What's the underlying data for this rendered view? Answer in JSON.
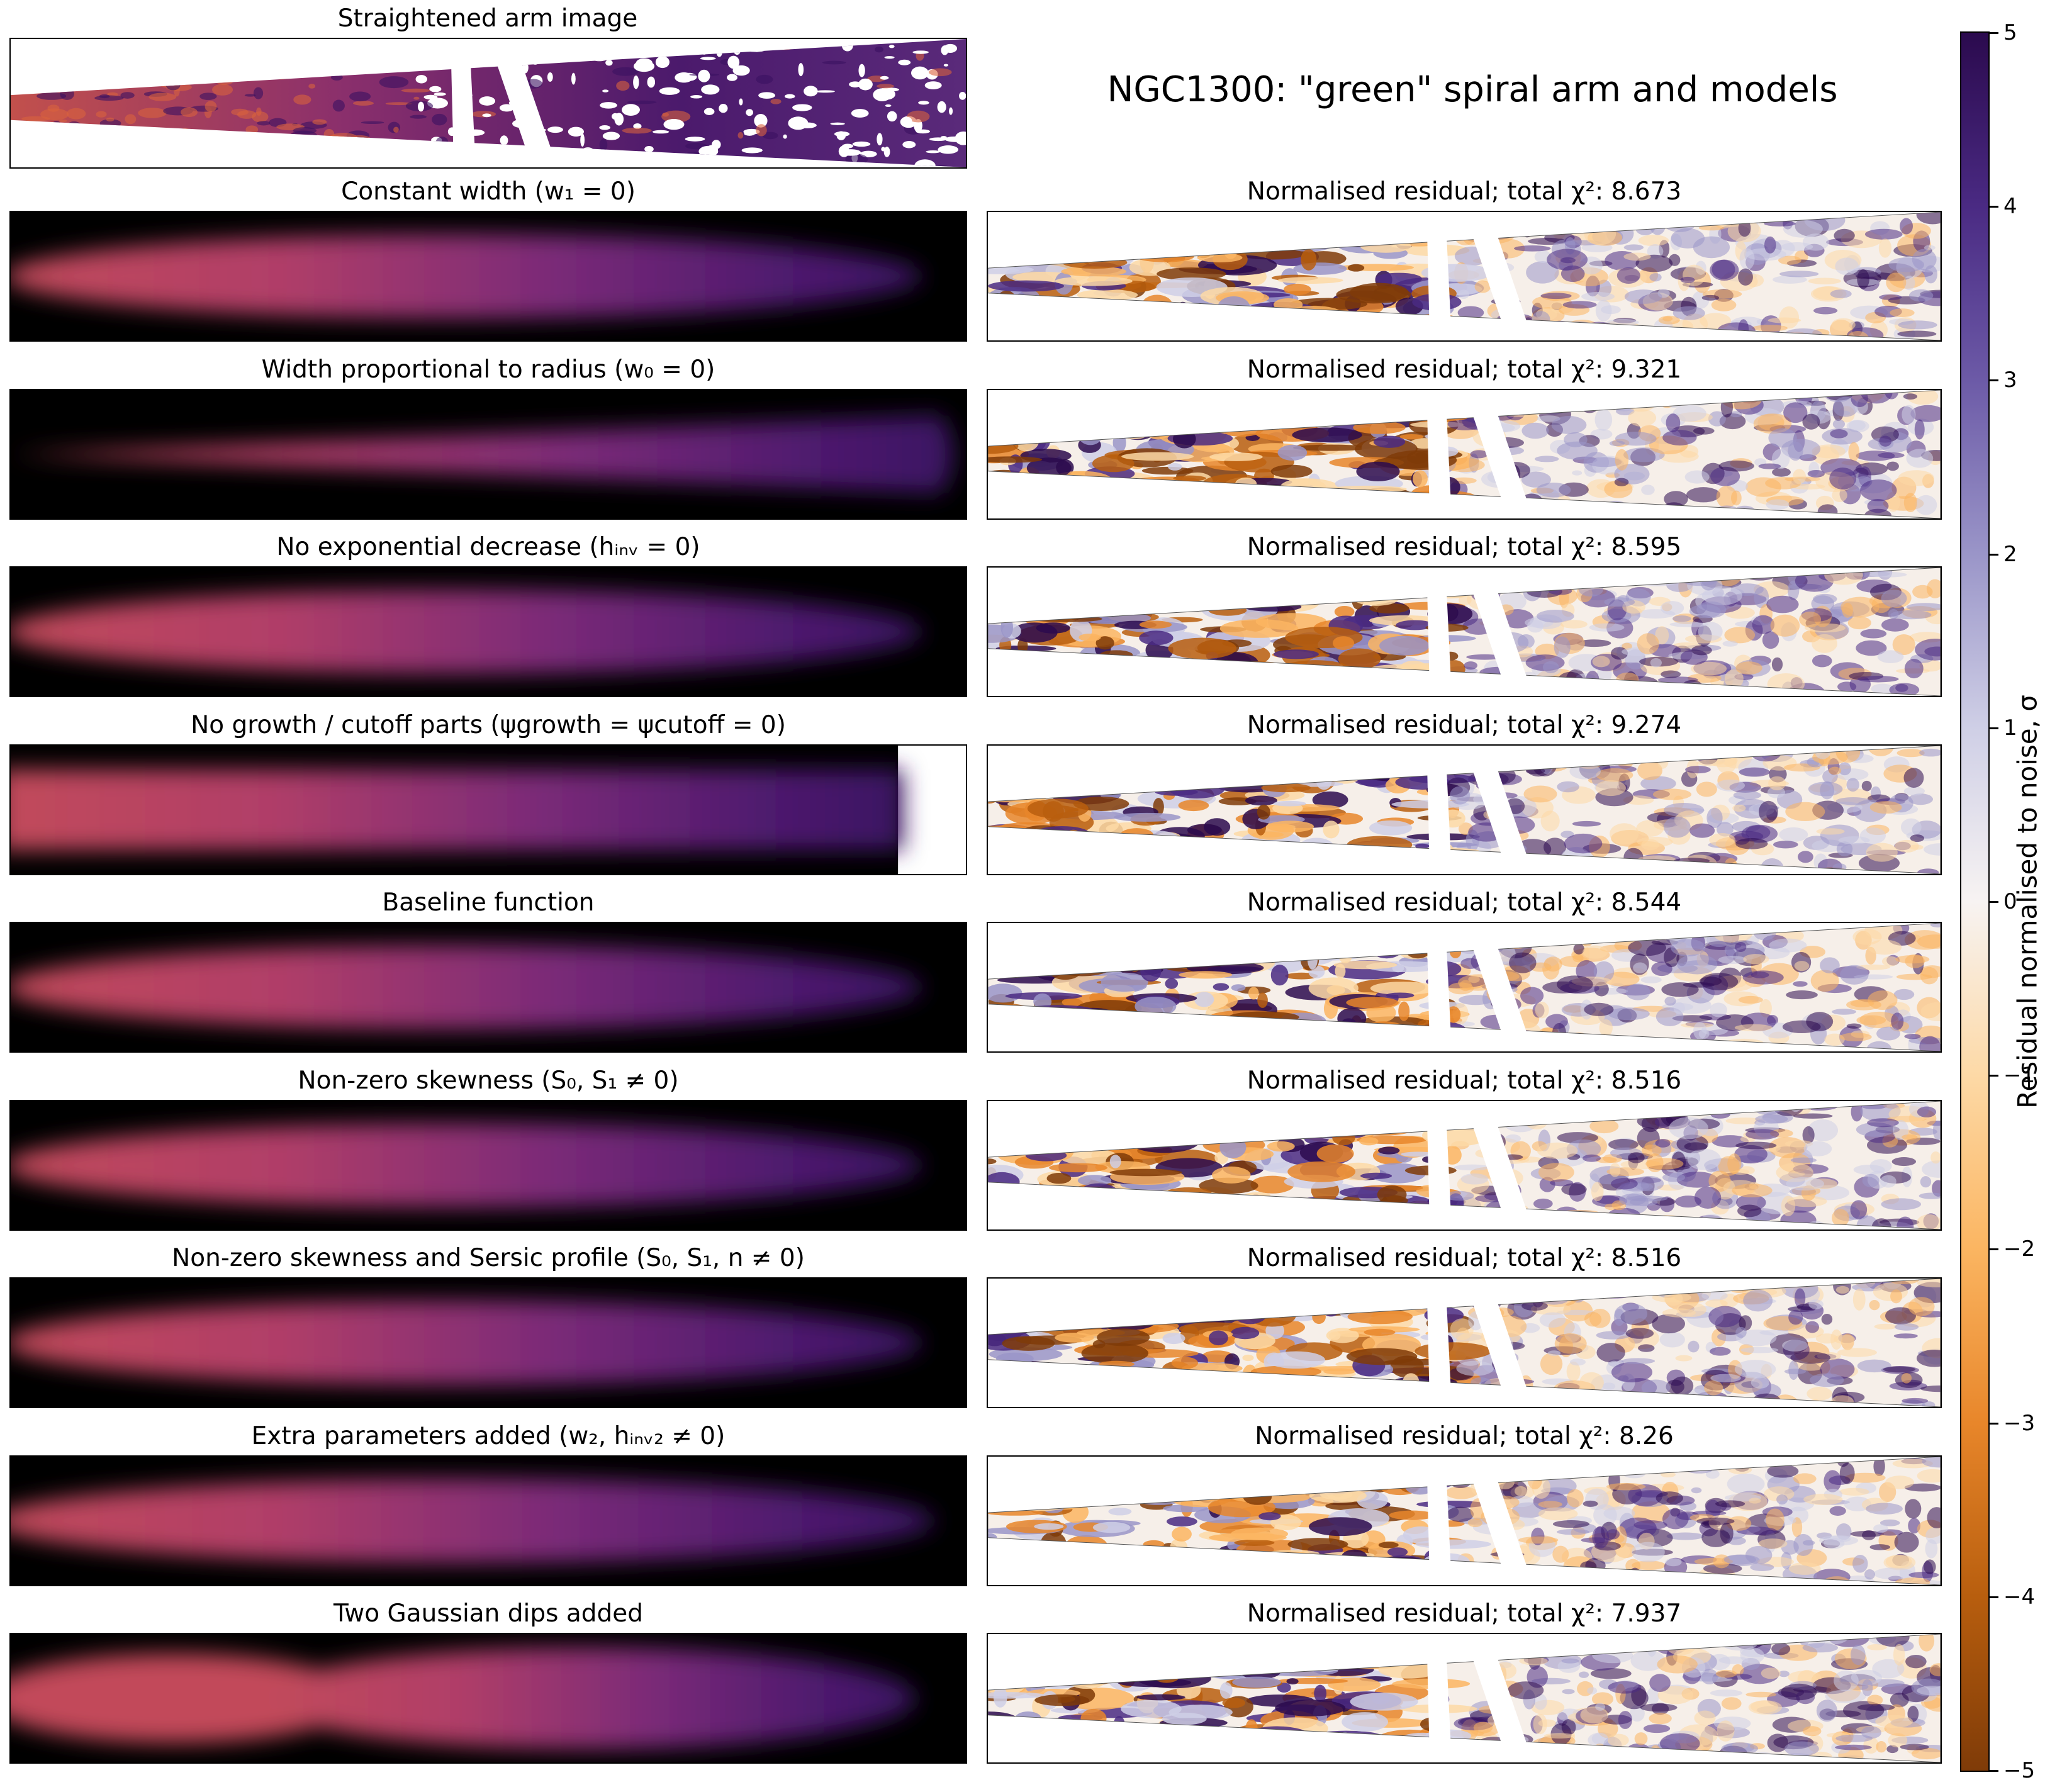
{
  "figure": {
    "main_title": "NGC1300: \"green\" spiral arm and models",
    "arm_image_title": "Straightened arm image"
  },
  "model_panels": [
    {
      "title": "Constant width (w₁ = 0)",
      "variant": "constant"
    },
    {
      "title": "Width proportional to radius (w₀ = 0)",
      "variant": "proportional"
    },
    {
      "title": "No exponential decrease (hᵢₙᵥ = 0)",
      "variant": "flat"
    },
    {
      "title": "No growth / cutoff parts (ψgrowth = ψcutoff = 0)",
      "variant": "cutoff"
    },
    {
      "title": "Baseline function",
      "variant": "baseline"
    },
    {
      "title": "Non-zero skewness (S₀, S₁ ≠ 0)",
      "variant": "skew"
    },
    {
      "title": "Non-zero skewness and Sersic profile (S₀, S₁, n ≠ 0)",
      "variant": "sersic"
    },
    {
      "title": "Extra parameters added (w₂, hᵢₙᵥ₂ ≠ 0)",
      "variant": "extra"
    },
    {
      "title": "Two Gaussian dips added",
      "variant": "dips"
    }
  ],
  "residual_panels": [
    {
      "title": "Normalised residual; total χ²: 8.673",
      "chi2": 8.673
    },
    {
      "title": "Normalised residual; total χ²: 9.321",
      "chi2": 9.321
    },
    {
      "title": "Normalised residual; total χ²: 8.595",
      "chi2": 8.595
    },
    {
      "title": "Normalised residual; total χ²: 9.274",
      "chi2": 9.274
    },
    {
      "title": "Normalised residual; total χ²: 8.544",
      "chi2": 8.544
    },
    {
      "title": "Normalised residual; total χ²: 8.516",
      "chi2": 8.516
    },
    {
      "title": "Normalised residual; total χ²: 8.516",
      "chi2": 8.516
    },
    {
      "title": "Normalised residual; total χ²: 8.26",
      "chi2": 8.26
    },
    {
      "title": "Normalised residual; total χ²: 7.937",
      "chi2": 7.937
    }
  ],
  "colorbar": {
    "label": "Residual normalised to noise, σ",
    "min": -5,
    "max": 5,
    "ticks": [
      "5",
      "4",
      "3",
      "2",
      "1",
      "0",
      "−1",
      "−2",
      "−3",
      "−4",
      "−5"
    ],
    "colors": {
      "high": "#2b0a4e",
      "mid": "#f7f3f2",
      "low": "#7f3b08"
    }
  },
  "chart_data": {
    "type": "heatmap",
    "title": "NGC1300: \"green\" spiral arm and models",
    "series": [
      {
        "name": "Constant width (w1 = 0)",
        "chi2": 8.673
      },
      {
        "name": "Width proportional to radius (w0 = 0)",
        "chi2": 9.321
      },
      {
        "name": "No exponential decrease (hinv = 0)",
        "chi2": 8.595
      },
      {
        "name": "No growth / cutoff parts (ψgrowth = ψcutoff = 0)",
        "chi2": 9.274
      },
      {
        "name": "Baseline function",
        "chi2": 8.544
      },
      {
        "name": "Non-zero skewness (S0, S1 ≠ 0)",
        "chi2": 8.516
      },
      {
        "name": "Non-zero skewness and Sersic profile (S0, S1, n ≠ 0)",
        "chi2": 8.516
      },
      {
        "name": "Extra parameters added (w2, hinv2 ≠ 0)",
        "chi2": 8.26
      },
      {
        "name": "Two Gaussian dips added",
        "chi2": 7.937
      }
    ],
    "colorbar_range": [
      -5,
      5
    ],
    "colorbar_label": "Residual normalised to noise, σ"
  }
}
